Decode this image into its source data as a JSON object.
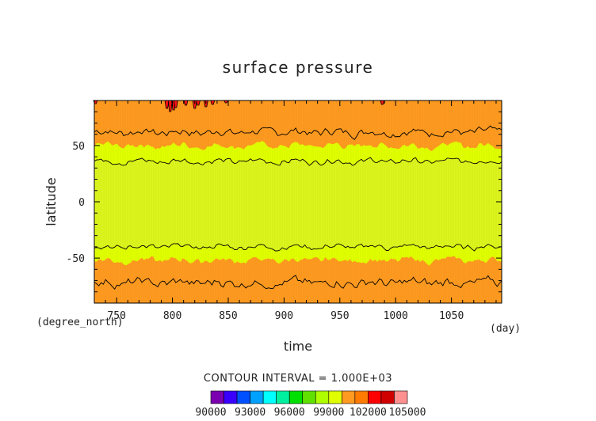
{
  "chart_data": {
    "type": "heatmap",
    "title": "surface pressure",
    "xlabel": "time",
    "ylabel": "latitude",
    "x_unit": "(day)",
    "y_unit": "(degree_north)",
    "xlim": [
      730,
      1095
    ],
    "ylim": [
      -90,
      90
    ],
    "x_ticks": [
      750,
      800,
      850,
      900,
      950,
      1000,
      1050
    ],
    "y_ticks": [
      -50,
      0,
      50
    ],
    "contour_interval_text": "CONTOUR INTERVAL = 1.000E+03",
    "contour_lines_pa": [
      99000,
      101000
    ],
    "colorbar": {
      "levels": [
        90000,
        91000,
        92000,
        93000,
        94000,
        95000,
        96000,
        97000,
        98000,
        99000,
        100000,
        101000,
        102000,
        103000,
        104000,
        105000
      ],
      "labels": [
        "90000",
        "93000",
        "96000",
        "99000",
        "102000",
        "105000"
      ],
      "colors": [
        "#7a00b0",
        "#3a00ff",
        "#0050ff",
        "#00a0ff",
        "#00ffff",
        "#00f0a0",
        "#00e000",
        "#60e000",
        "#b0ff00",
        "#e0ff00",
        "#ff9a20",
        "#ff7a00",
        "#ff0000",
        "#d00000",
        "#ff9090"
      ]
    },
    "band_boundaries_deg": {
      "south_101000": -72,
      "south_100000": -52,
      "south_99000": -40,
      "north_99000": 36,
      "north_100000": 50,
      "north_101000": 62
    },
    "fill_colors": {
      "above_100000": "#ff9a20",
      "99000_100000": "#e0ff00",
      "below_99000": "#dcf51c",
      "high_spikes": "#ff1010"
    }
  }
}
